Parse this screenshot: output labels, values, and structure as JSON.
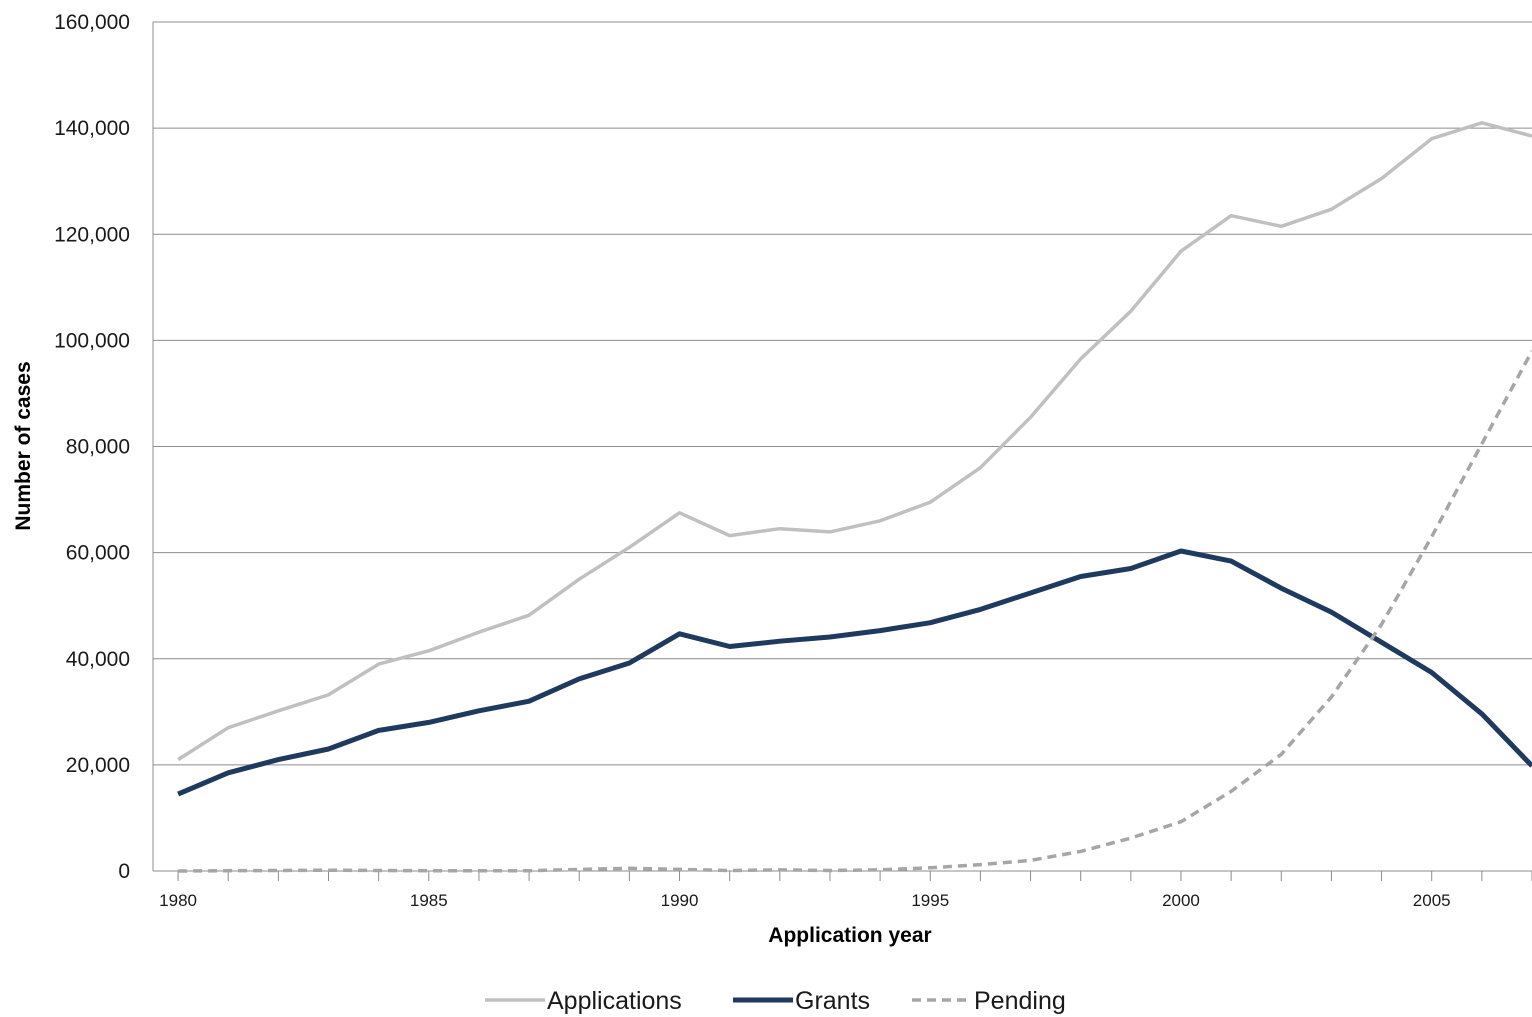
{
  "chart_data": {
    "type": "line",
    "title": "",
    "xlabel": "Application year",
    "ylabel": "Number of cases",
    "x": [
      1980,
      1981,
      1982,
      1983,
      1984,
      1985,
      1986,
      1987,
      1988,
      1989,
      1990,
      1991,
      1992,
      1993,
      1994,
      1995,
      1996,
      1997,
      1998,
      1999,
      2000,
      2001,
      2002,
      2003,
      2004,
      2005,
      2006,
      2007
    ],
    "xlim": [
      1979.5,
      2007
    ],
    "x_tick_labels": [
      "1980",
      "1985",
      "1990",
      "1995",
      "2000",
      "2005"
    ],
    "ylim": [
      0,
      160000
    ],
    "y_tick_labels": [
      "0",
      "20,000",
      "40,000",
      "60,000",
      "80,000",
      "100,000",
      "120,000",
      "140,000",
      "160,000"
    ],
    "grid": "horizontal",
    "legend_position": "bottom",
    "series": [
      {
        "name": "Applications",
        "color": "#c0c0c0",
        "style": "solid",
        "values": [
          21000,
          27000,
          30200,
          33200,
          39000,
          41500,
          45000,
          48200,
          55000,
          61000,
          67500,
          63200,
          64500,
          63900,
          66000,
          69500,
          76000,
          85500,
          96500,
          105500,
          116800,
          123500,
          121500,
          124700,
          130500,
          138000,
          141000,
          138500
        ]
      },
      {
        "name": "Grants",
        "color": "#1f3a5f",
        "style": "solid",
        "values": [
          14500,
          18500,
          21000,
          23000,
          26500,
          28000,
          30200,
          32000,
          36200,
          39200,
          44700,
          42300,
          43300,
          44100,
          45300,
          46800,
          49300,
          52400,
          55500,
          57000,
          60300,
          58400,
          53300,
          48800,
          43100,
          37400,
          29600,
          19800
        ]
      },
      {
        "name": "Pending",
        "color": "#a6a6a6",
        "style": "dashed",
        "values": [
          0,
          50,
          100,
          150,
          100,
          50,
          50,
          50,
          300,
          500,
          300,
          100,
          200,
          100,
          200,
          600,
          1200,
          2000,
          3700,
          6200,
          9300,
          15000,
          22000,
          32800,
          46500,
          63000,
          80500,
          98000
        ]
      }
    ]
  }
}
